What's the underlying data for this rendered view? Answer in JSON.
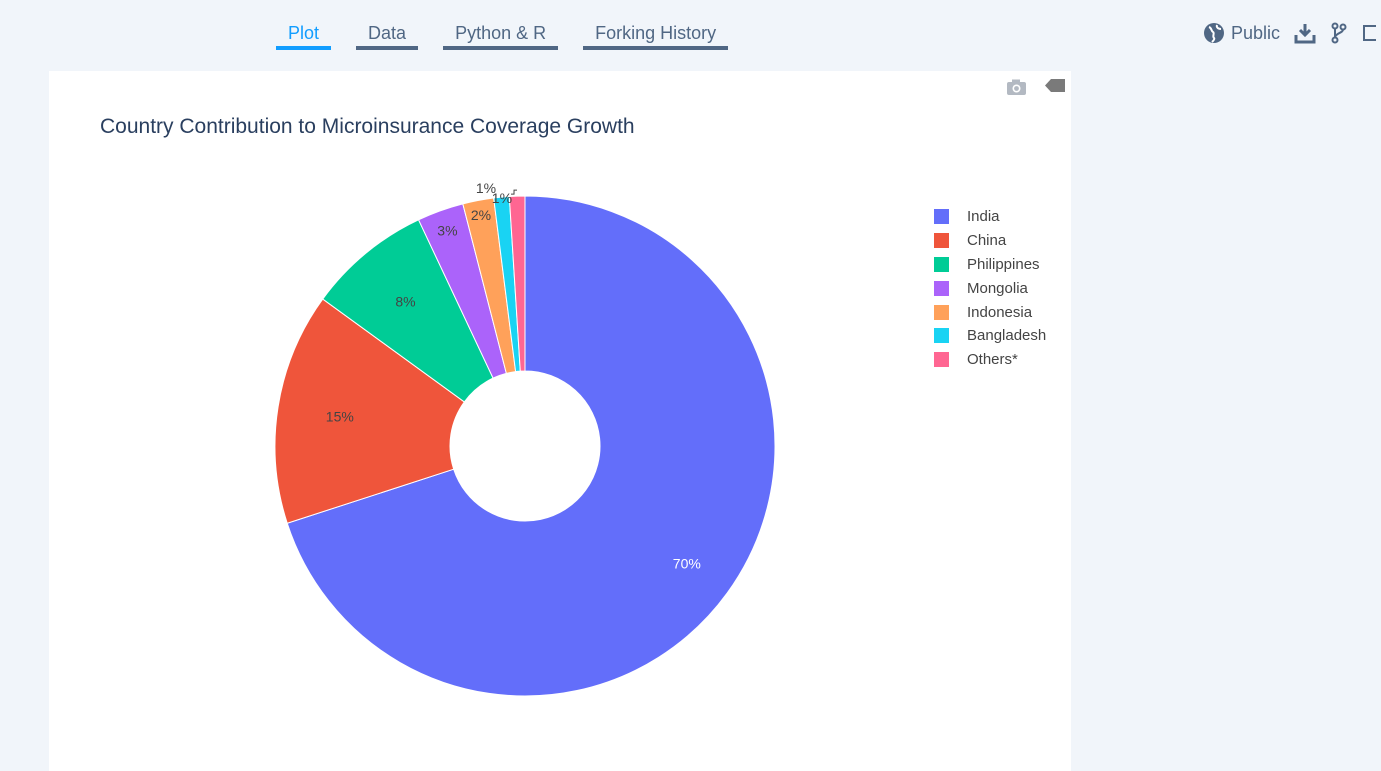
{
  "tabs": [
    {
      "label": "Plot",
      "active": true
    },
    {
      "label": "Data",
      "active": false
    },
    {
      "label": "Python & R",
      "active": false
    },
    {
      "label": "Forking History",
      "active": false
    }
  ],
  "header": {
    "visibility_label": "Public",
    "icons": [
      "globe-icon",
      "download-icon",
      "fork-icon",
      "square-icon"
    ]
  },
  "modebar": {
    "icons": [
      "camera-icon",
      "tag-icon"
    ]
  },
  "chart_data": {
    "type": "pie",
    "title": "Country Contribution to Microinsurance Coverage Growth",
    "hole": true,
    "labels": [
      "India",
      "China",
      "Philippines",
      "Mongolia",
      "Indonesia",
      "Bangladesh",
      "Others*"
    ],
    "values": [
      70,
      15,
      8,
      3,
      2,
      1,
      1
    ],
    "text_labels": [
      "70%",
      "15%",
      "8%",
      "3%",
      "2%",
      "1%",
      "1%"
    ],
    "colors": [
      "#636efa",
      "#EF553B",
      "#00cc96",
      "#ab63fa",
      "#FFA15A",
      "#19d3f3",
      "#FF6692"
    ],
    "legend_position": "right"
  }
}
